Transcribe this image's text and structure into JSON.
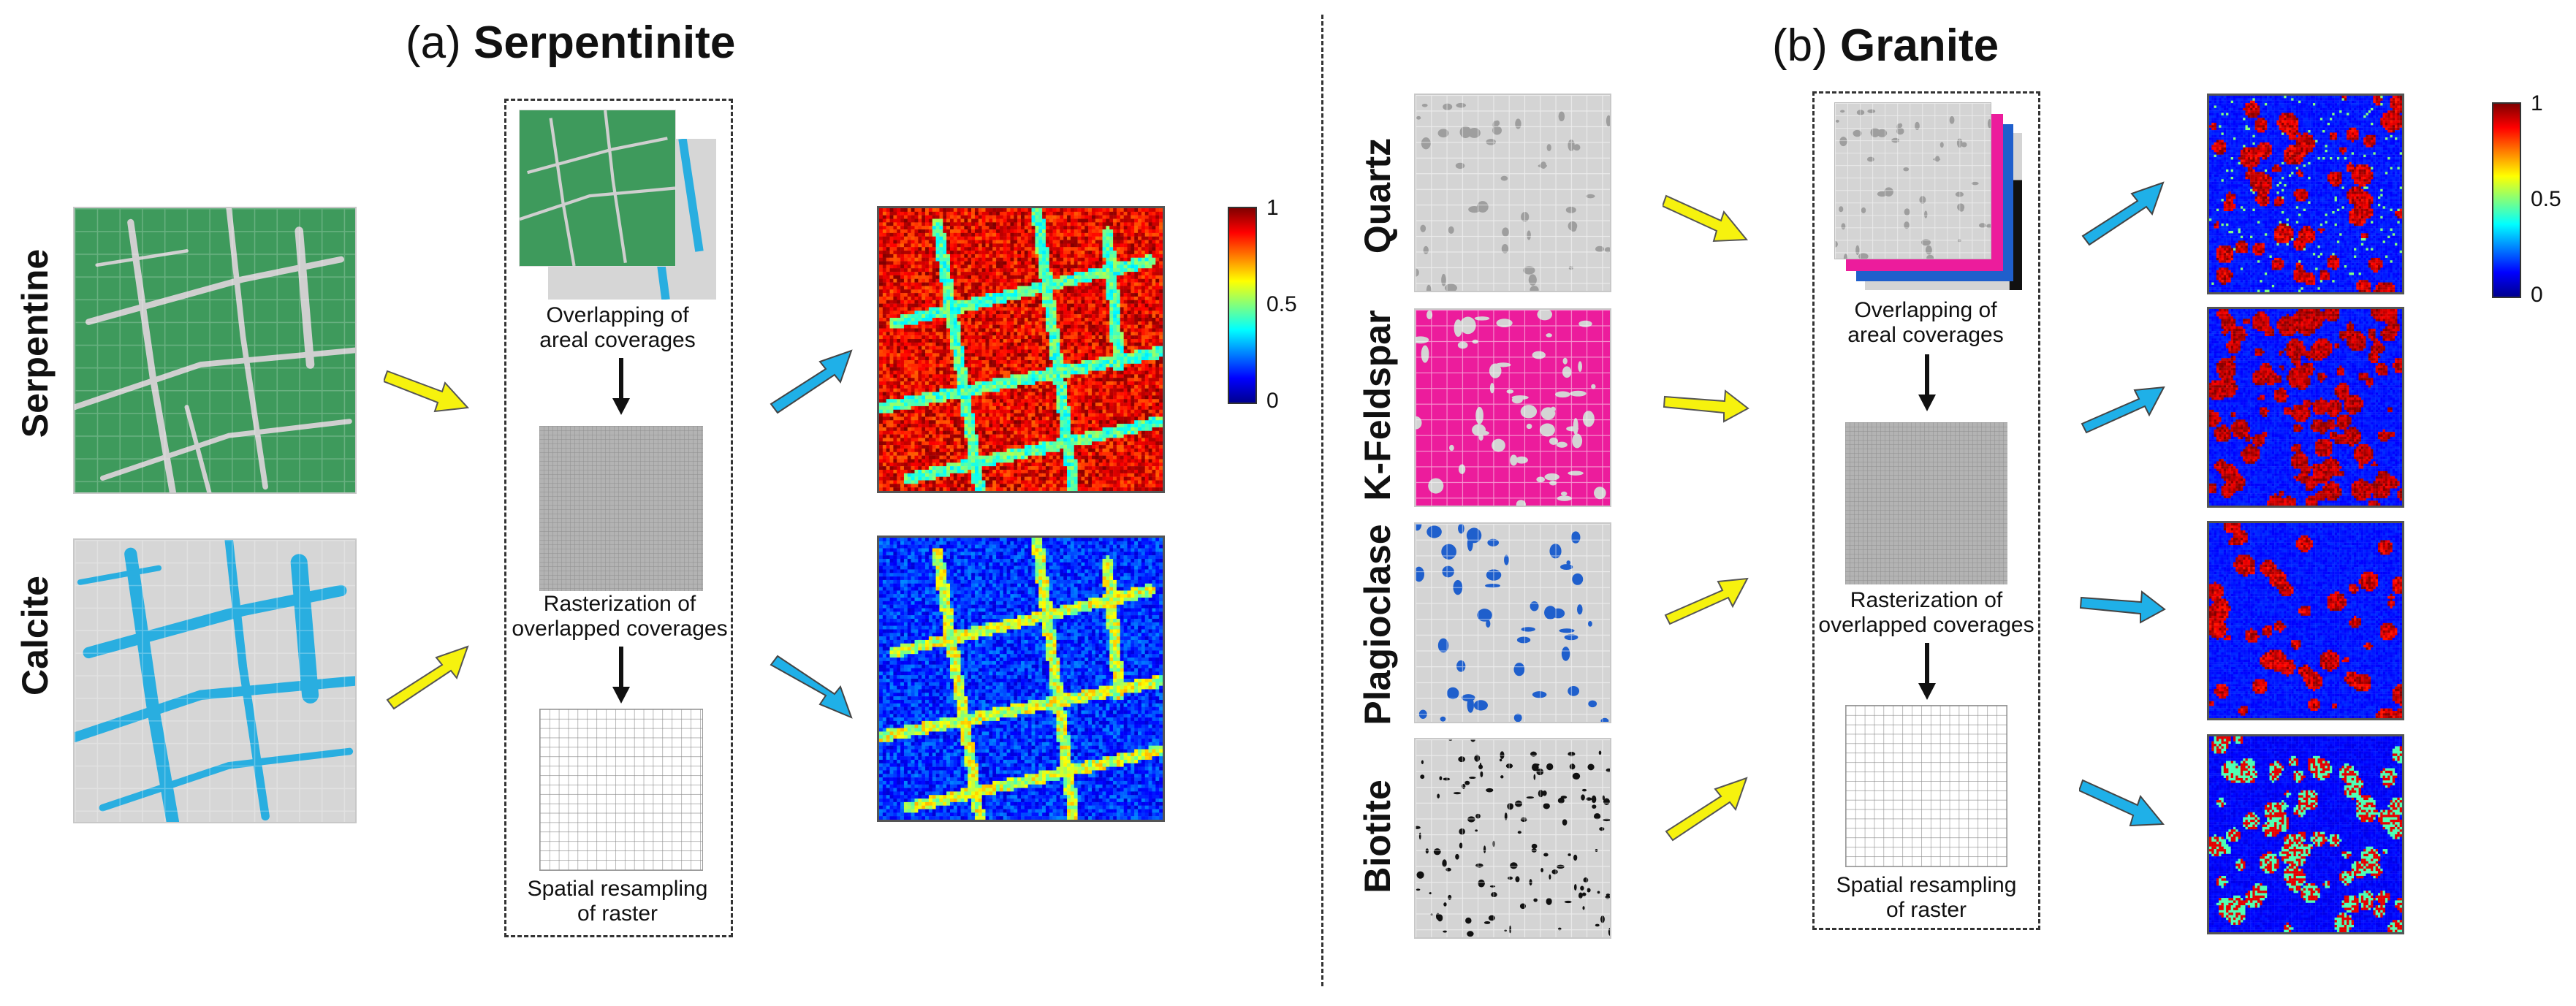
{
  "panel_a": {
    "letter": "(a)",
    "name": "Serpentinite",
    "mineral_labels": [
      "Serpentine",
      "Calcite"
    ],
    "steps": {
      "overlap": [
        "Overlapping of",
        "areal coverages"
      ],
      "rasterize": [
        "Rasterization of",
        "overlapped coverages"
      ],
      "resample": [
        "Spatial resampling",
        "of raster"
      ]
    },
    "colorbar": {
      "max": "1",
      "mid": "0.5",
      "min": "0"
    }
  },
  "panel_b": {
    "letter": "(b)",
    "name": "Granite",
    "mineral_labels": [
      "Quartz",
      "K-Feldspar",
      "Plagioclase",
      "Biotite"
    ],
    "steps": {
      "overlap": [
        "Overlapping of",
        "areal coverages"
      ],
      "rasterize": [
        "Rasterization of",
        "overlapped coverages"
      ],
      "resample": [
        "Spatial resampling",
        "of raster"
      ]
    },
    "colorbar": {
      "max": "1",
      "mid": "0.5",
      "min": "0"
    }
  },
  "colors": {
    "serpentine": "#3e9a5c",
    "calcite": "#29aee0",
    "quartz_grain": "#9e9e9e",
    "k_feldspar": "#ec1c9c",
    "plagioclase": "#1f5fcc",
    "biotite": "#111111",
    "background_gray": "#cfcfcf",
    "yellow_arrow": "#f6f20e",
    "blue_arrow": "#1fb0e8"
  }
}
